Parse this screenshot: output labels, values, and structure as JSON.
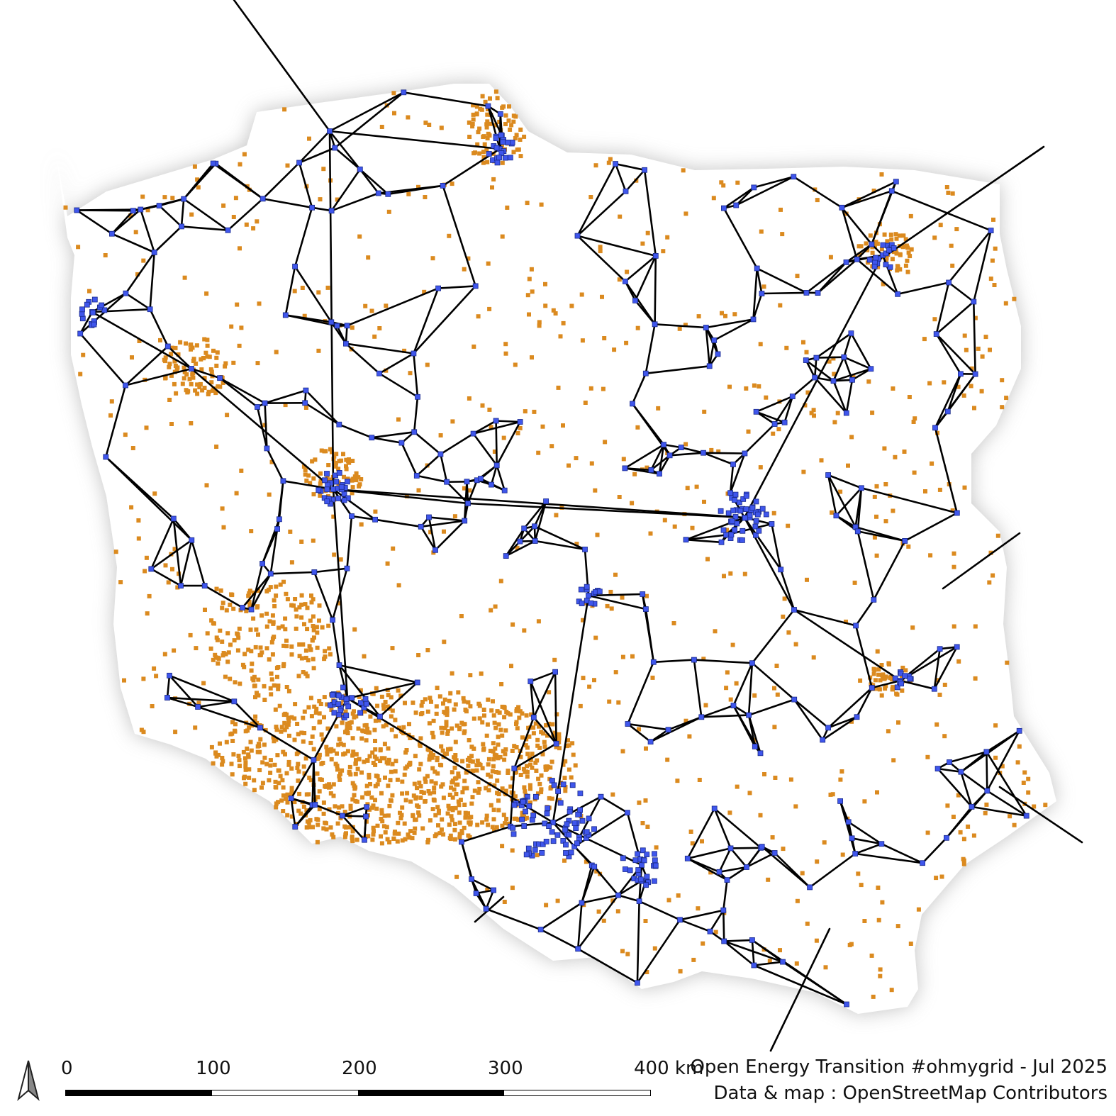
{
  "map": {
    "legend_colors": {
      "substation": "#3f56ec",
      "plant": "#db8a1f",
      "line": "#000000",
      "country_fill": "#ffffff"
    }
  },
  "scalebar": {
    "labels": [
      "0",
      "100",
      "200",
      "300",
      "400 km"
    ]
  },
  "credits": {
    "line1": "Open Energy Transition #ohmygrid - Jul 2025",
    "line2": "Data & map : OpenStreetMap Contributors"
  },
  "north_arrow": {
    "icon": "north-arrow-icon"
  }
}
